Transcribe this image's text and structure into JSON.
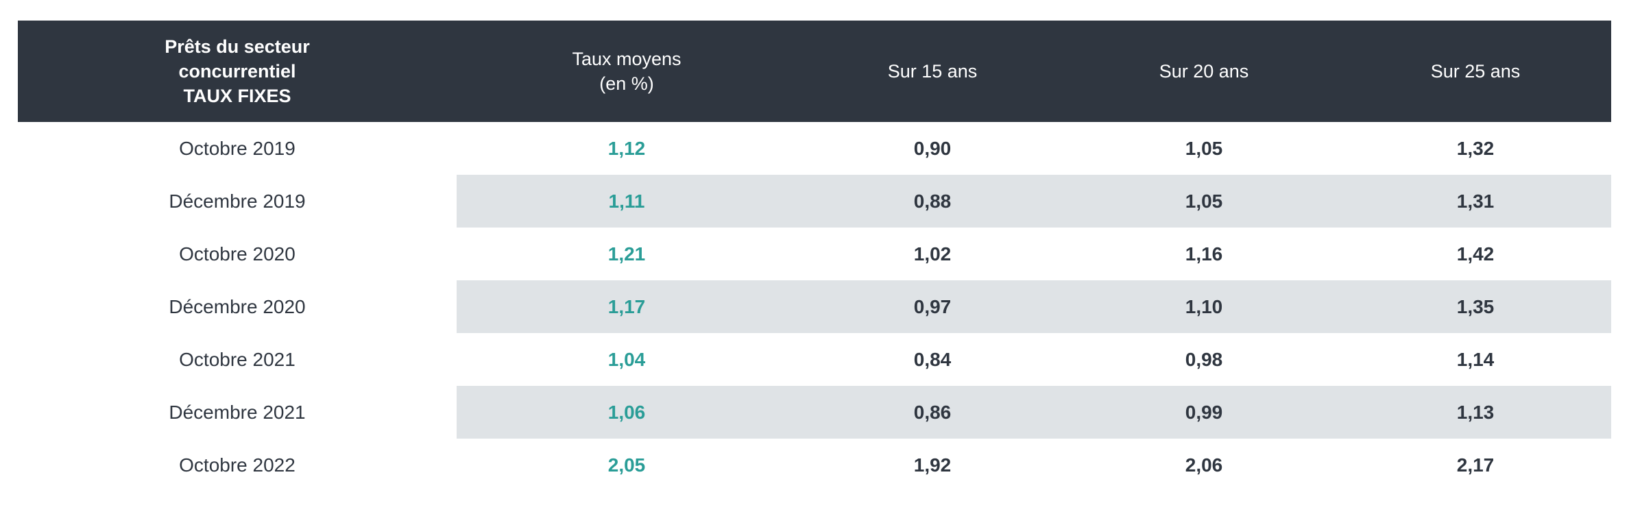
{
  "chart_data": {
    "type": "table",
    "columns": [
      "Prêts du secteur\nconcurrentiel\nTAUX FIXES",
      "Taux moyens\n(en %)",
      "Sur 15 ans",
      "Sur 20 ans",
      "Sur 25 ans"
    ],
    "rows": [
      [
        "Octobre 2019",
        "1,12",
        "0,90",
        "1,05",
        "1,32"
      ],
      [
        "Décembre 2019",
        "1,11",
        "0,88",
        "1,05",
        "1,31"
      ],
      [
        "Octobre 2020",
        "1,21",
        "1,02",
        "1,16",
        "1,42"
      ],
      [
        "Décembre 2020",
        "1,17",
        "0,97",
        "1,10",
        "1,35"
      ],
      [
        "Octobre 2021",
        "1,04",
        "0,84",
        "0,98",
        "1,14"
      ],
      [
        "Décembre 2021",
        "1,06",
        "0,86",
        "0,99",
        "1,13"
      ],
      [
        "Octobre 2022",
        "2,05",
        "1,92",
        "2,06",
        "2,17"
      ]
    ]
  },
  "colors": {
    "header_bg": "#2f3640",
    "header_text": "#ffffff",
    "accent_rate": "#2a9d97",
    "row_shade": "#dfe3e6",
    "body_text": "#2f3640"
  }
}
